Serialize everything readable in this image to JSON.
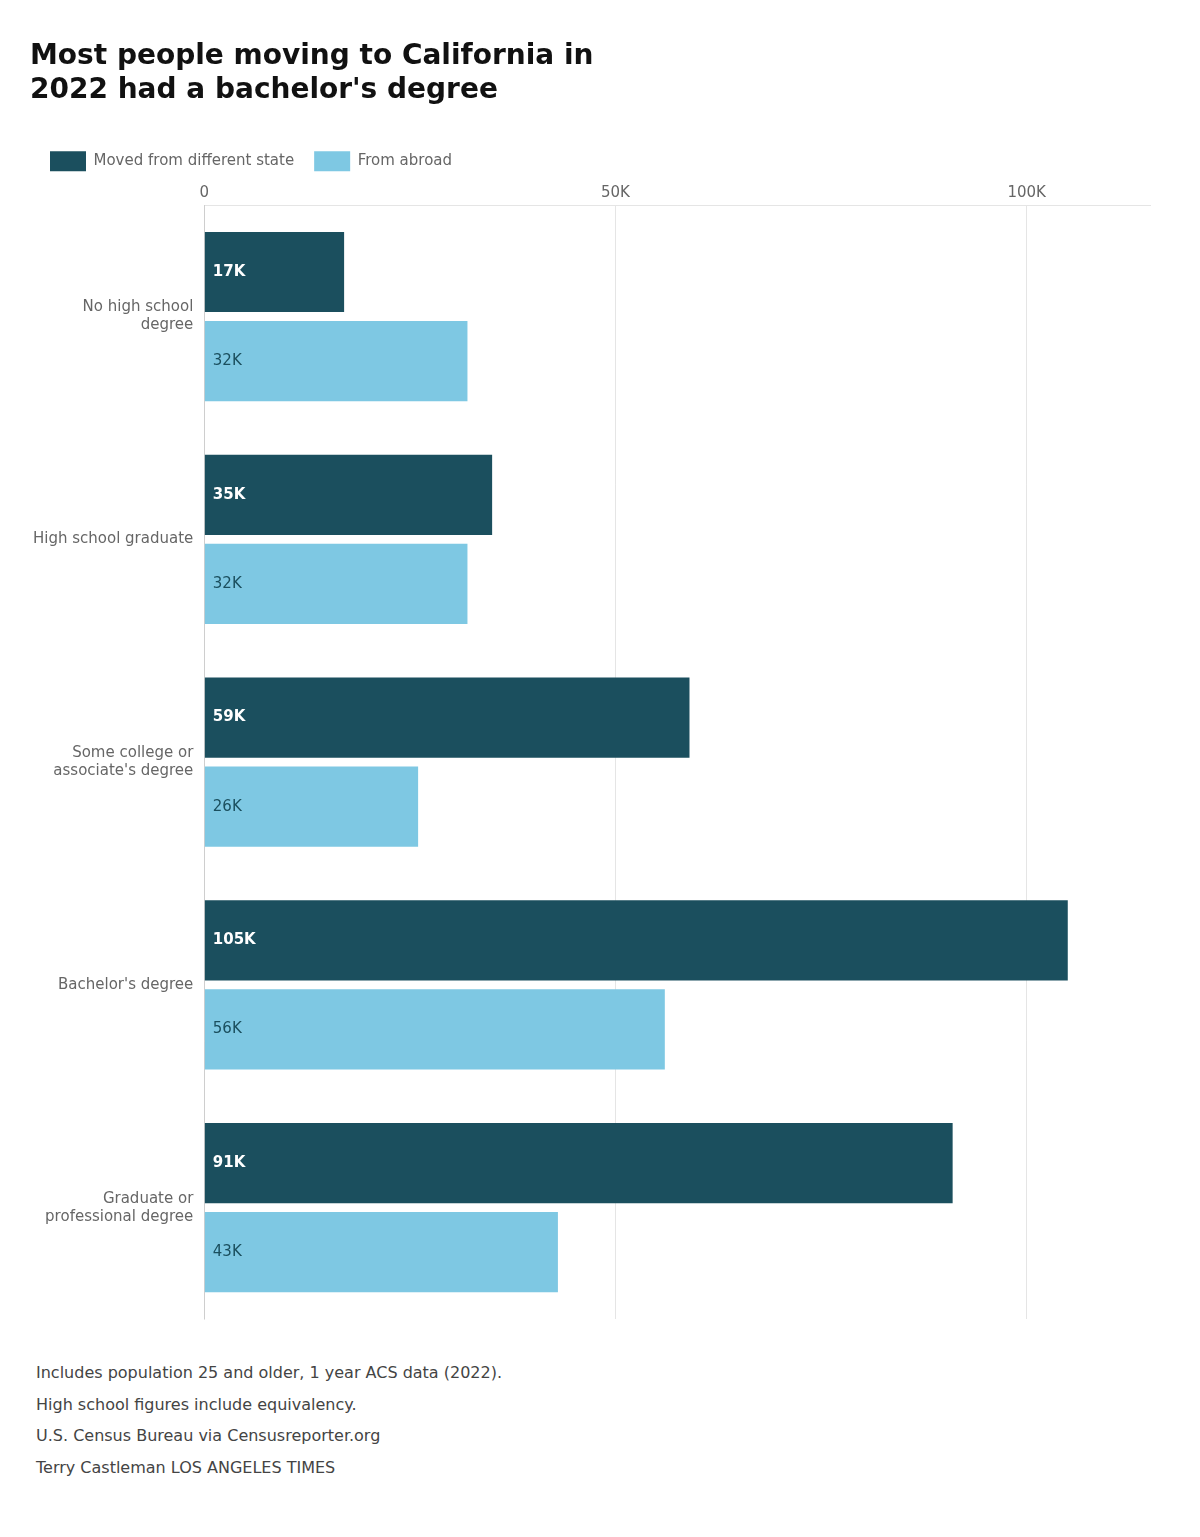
{
  "chart_data": {
    "type": "bar",
    "orientation": "horizontal",
    "title": "Most people moving to California in\n2022 had a bachelor's degree",
    "categories": [
      "No high school\ndegree",
      "High school graduate",
      "Some college or\nassociate's degree",
      "Bachelor's degree",
      "Graduate or\nprofessional degree"
    ],
    "series": [
      {
        "name": "Moved from different state",
        "color": "#1b4f5e",
        "values": [
          17000,
          35000,
          59000,
          105000,
          91000
        ],
        "value_labels": [
          "17K",
          "35K",
          "59K",
          "105K",
          "91K"
        ]
      },
      {
        "name": "From abroad",
        "color": "#7ec8e3",
        "values": [
          32000,
          32000,
          26000,
          56000,
          43000
        ],
        "value_labels": [
          "32K",
          "32K",
          "26K",
          "56K",
          "43K"
        ]
      }
    ],
    "xlim": [
      0,
      115000
    ],
    "xticks": [
      0,
      {
        "value": 50000,
        "label": "50K"
      },
      {
        "value": 100000,
        "label": "100K"
      }
    ],
    "grid": true,
    "legend": "top",
    "data_labels": true,
    "annotations": [
      "Includes population 25 and older, 1 year ACS data (2022).",
      "High school figures include equivalency.",
      "U.S. Census Bureau via Censusreporter.org",
      "Terry Castleman  LOS ANGELES TIMES"
    ]
  }
}
